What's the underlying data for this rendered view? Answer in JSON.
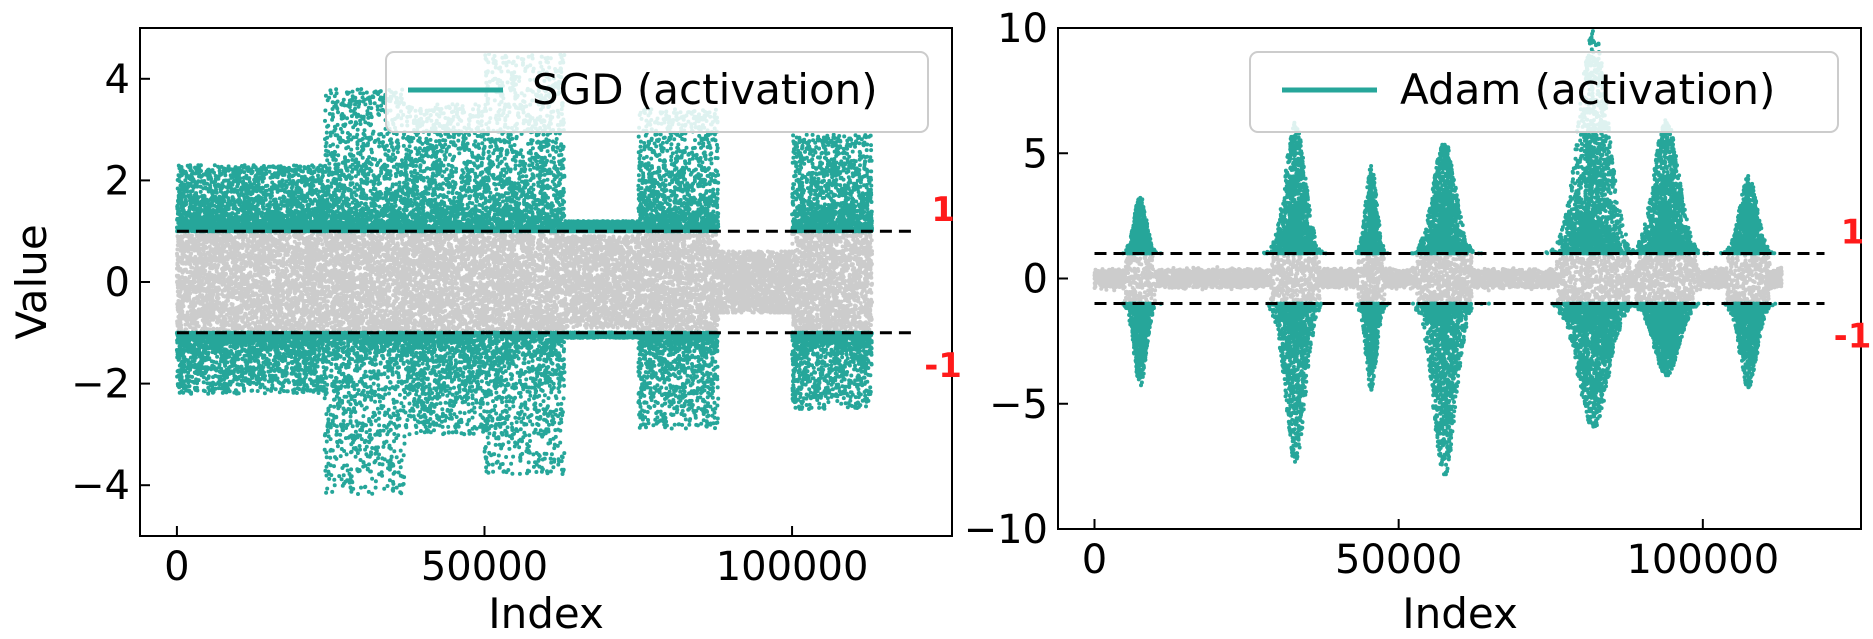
{
  "colors": {
    "outlier": "#26a69a",
    "inlier": "#cccccc",
    "threshold_line": "#000000",
    "threshold_label": "#ff1a1a"
  },
  "chart_data": [
    {
      "type": "scatter",
      "legend": {
        "label": "SGD (activation)",
        "placement": "top-right"
      },
      "xlabel": "Index",
      "ylabel": "Value",
      "xlim": [
        -6000,
        126000
      ],
      "ylim": [
        -5,
        5
      ],
      "xticks": [
        0,
        50000,
        100000
      ],
      "xtick_labels": [
        "0",
        "50000",
        "100000"
      ],
      "yticks": [
        -4,
        -2,
        0,
        2,
        4
      ],
      "ytick_labels": [
        "−4",
        "−2",
        "0",
        "2",
        "4"
      ],
      "thresholds": [
        {
          "value": 1,
          "label": "1",
          "xrange": [
            0,
            120000
          ]
        },
        {
          "value": -1,
          "label": "-1",
          "xrange": [
            0,
            120000
          ]
        }
      ],
      "n_points": 113000,
      "segments": [
        {
          "x": [
            0,
            24000
          ],
          "outlier_max": 2.3,
          "outlier_min": -2.2,
          "inlier_band": 1.0
        },
        {
          "x": [
            24000,
            37000
          ],
          "outlier_max": 3.8,
          "outlier_min": -4.2,
          "inlier_band": 1.0
        },
        {
          "x": [
            37000,
            50000
          ],
          "outlier_max": 3.5,
          "outlier_min": -3.0,
          "inlier_band": 1.0
        },
        {
          "x": [
            50000,
            63000
          ],
          "outlier_max": 4.5,
          "outlier_min": -3.8,
          "inlier_band": 1.0
        },
        {
          "x": [
            63000,
            75000
          ],
          "outlier_max": 1.2,
          "outlier_min": -1.1,
          "inlier_band": 0.9
        },
        {
          "x": [
            75000,
            88000
          ],
          "outlier_max": 3.4,
          "outlier_min": -2.9,
          "inlier_band": 1.0
        },
        {
          "x": [
            88000,
            100000
          ],
          "outlier_max": 0.5,
          "outlier_min": -0.7,
          "inlier_band": 0.6
        },
        {
          "x": [
            100000,
            113000
          ],
          "outlier_max": 2.9,
          "outlier_min": -2.5,
          "inlier_band": 1.0
        }
      ]
    },
    {
      "type": "scatter",
      "legend": {
        "label": "Adam (activation)",
        "placement": "top-right"
      },
      "xlabel": "Index",
      "ylabel": "",
      "xlim": [
        -6000,
        126000
      ],
      "ylim": [
        -10,
        10
      ],
      "xticks": [
        0,
        50000,
        100000
      ],
      "xtick_labels": [
        "0",
        "50000",
        "100000"
      ],
      "yticks": [
        -10,
        -5,
        0,
        5,
        10
      ],
      "ytick_labels": [
        "−10",
        "−5",
        "0",
        "5",
        "10"
      ],
      "thresholds": [
        {
          "value": 1,
          "label": "1",
          "xrange": [
            0,
            120000
          ]
        },
        {
          "value": -1,
          "label": "-1",
          "xrange": [
            0,
            120000
          ]
        }
      ],
      "n_points": 113000,
      "clusters": [
        {
          "center": 7500,
          "width": 2500,
          "outlier_max": 3.3,
          "outlier_min": -4.3
        },
        {
          "center": 33000,
          "width": 4000,
          "outlier_max": 6.3,
          "outlier_min": -7.4
        },
        {
          "center": 45500,
          "width": 2200,
          "outlier_max": 4.5,
          "outlier_min": -4.5
        },
        {
          "center": 57500,
          "width": 4500,
          "outlier_max": 5.5,
          "outlier_min": -7.9
        },
        {
          "center": 82000,
          "width": 6000,
          "outlier_max": 9.9,
          "outlier_min": -6.0
        },
        {
          "center": 94000,
          "width": 5000,
          "outlier_max": 6.4,
          "outlier_min": -3.9
        },
        {
          "center": 107500,
          "width": 3500,
          "outlier_max": 4.1,
          "outlier_min": -4.4
        }
      ],
      "inlier_band": 0.9
    }
  ]
}
